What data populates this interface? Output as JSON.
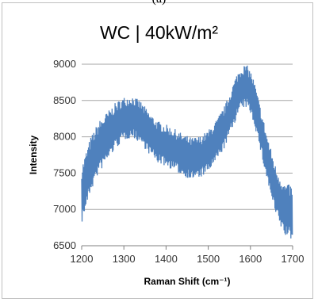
{
  "caption": "(a)",
  "chart_data": {
    "type": "line",
    "title": "WC | 40kW/m²",
    "xlabel": "Raman Shift (cm⁻¹)",
    "ylabel": "Intensity",
    "xlim": [
      1200,
      1700
    ],
    "ylim": [
      6500,
      9000
    ],
    "xticks": [
      1200,
      1300,
      1400,
      1500,
      1600,
      1700
    ],
    "yticks": [
      6500,
      7000,
      7500,
      8000,
      8500,
      9000
    ],
    "grid": "horizontal",
    "legend": "none",
    "color": "#4f81bd",
    "series": [
      {
        "x": [
          1200,
          1220,
          1240,
          1260,
          1280,
          1300,
          1320,
          1340,
          1360,
          1380,
          1400,
          1420,
          1440,
          1460,
          1480,
          1500,
          1520,
          1540,
          1560,
          1570,
          1580,
          1590,
          1600,
          1610,
          1620,
          1640,
          1660,
          1680,
          1700
        ],
        "y_center": [
          7200,
          7600,
          7850,
          8000,
          8150,
          8250,
          8280,
          8200,
          8050,
          7930,
          7880,
          7820,
          7750,
          7700,
          7720,
          7800,
          7950,
          8150,
          8450,
          8600,
          8680,
          8700,
          8620,
          8450,
          8200,
          7700,
          7250,
          7000,
          6950
        ],
        "y_spread": [
          400,
          380,
          360,
          340,
          320,
          300,
          290,
          290,
          290,
          290,
          290,
          290,
          290,
          290,
          290,
          290,
          290,
          290,
          300,
          300,
          300,
          300,
          300,
          300,
          300,
          320,
          340,
          360,
          380
        ]
      }
    ]
  }
}
